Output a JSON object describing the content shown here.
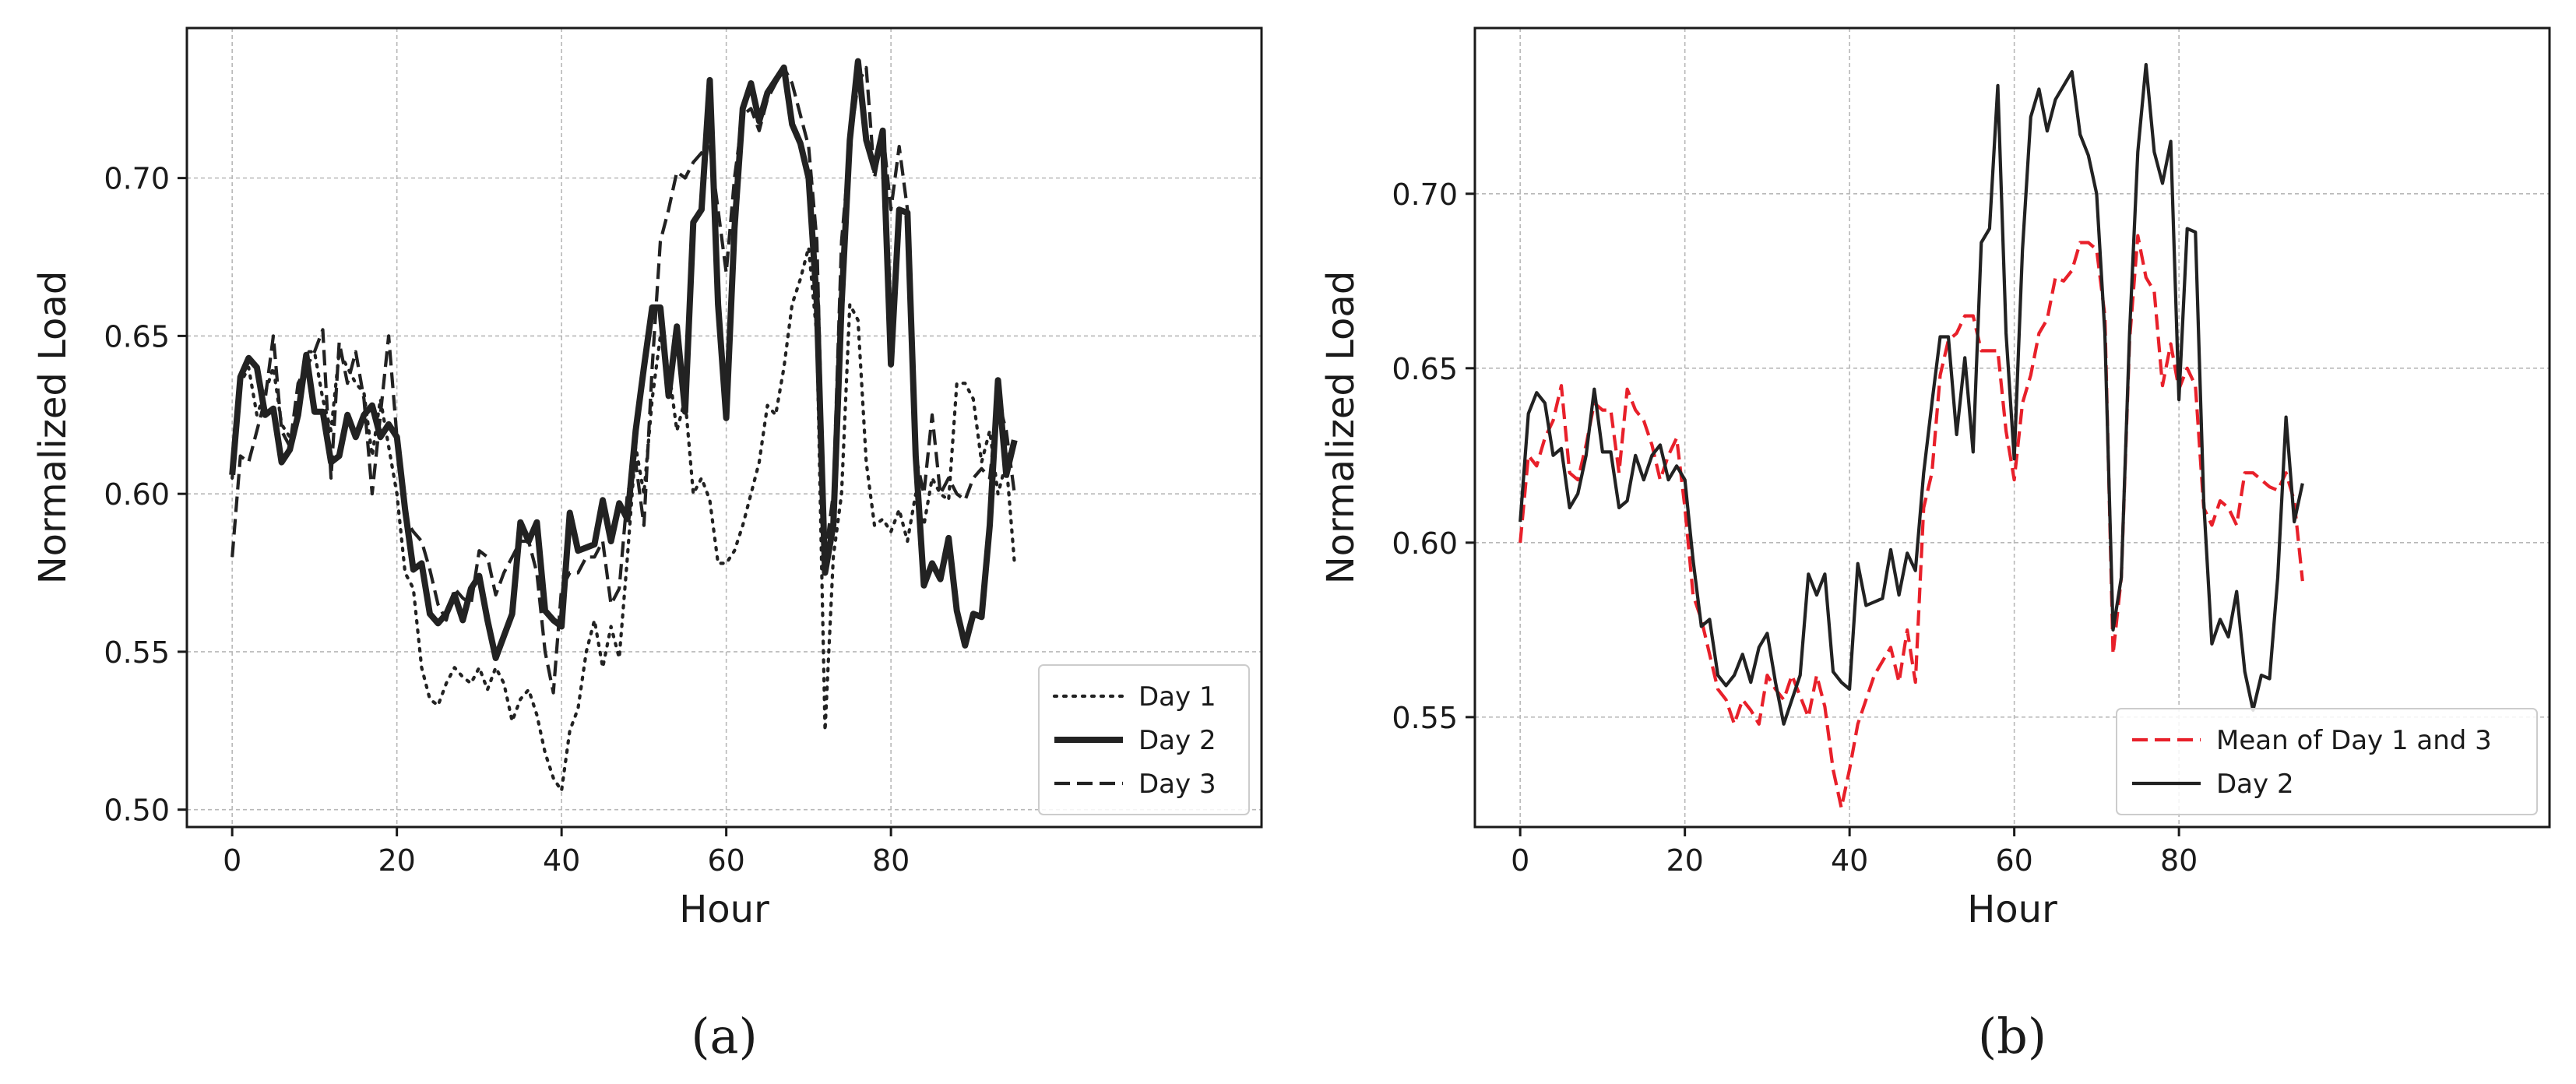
{
  "chart_data": [
    {
      "type": "line",
      "caption": "(a)",
      "xlabel": "Hour",
      "ylabel": "Normalized Load",
      "xlim": [
        -5.5,
        125
      ],
      "ylim": [
        0.4945,
        0.7475
      ],
      "xticks": [
        0,
        20,
        40,
        60,
        80
      ],
      "xtick_labels": [
        "0",
        "20",
        "40",
        "60",
        "80"
      ],
      "yticks": [
        0.5,
        0.55,
        0.6,
        0.65,
        0.7
      ],
      "ytick_labels": [
        "0.50",
        "0.55",
        "0.60",
        "0.65",
        "0.70"
      ],
      "grid": true,
      "legend_position": "lower right",
      "series": [
        {
          "name": "Day 1",
          "color": "#222222",
          "style": "dotted",
          "weight": "normal",
          "x": [
            0,
            1,
            2,
            3,
            4,
            5,
            6,
            7,
            8,
            9,
            10,
            11,
            12,
            13,
            14,
            15,
            16,
            17,
            18,
            19,
            20,
            21,
            22,
            23,
            24,
            25,
            26,
            27,
            28,
            29,
            30,
            31,
            32,
            33,
            34,
            35,
            36,
            37,
            38,
            39,
            40,
            41,
            42,
            43,
            44,
            45,
            46,
            47,
            48,
            49,
            50,
            51,
            52,
            53,
            54,
            55,
            56,
            57,
            58,
            59,
            60,
            61,
            62,
            63,
            64,
            65,
            66,
            67,
            68,
            69,
            70,
            71,
            72,
            73,
            74,
            75,
            76,
            77,
            78,
            79,
            80,
            81,
            82,
            83,
            84,
            85,
            86,
            87,
            88,
            89,
            90,
            91,
            92,
            93,
            94,
            95
          ],
          "y": [
            0.605,
            0.635,
            0.64,
            0.625,
            0.632,
            0.64,
            0.622,
            0.618,
            0.625,
            0.645,
            0.645,
            0.63,
            0.62,
            0.645,
            0.64,
            0.635,
            0.632,
            0.612,
            0.63,
            0.615,
            0.6,
            0.575,
            0.57,
            0.545,
            0.535,
            0.533,
            0.54,
            0.545,
            0.542,
            0.54,
            0.545,
            0.538,
            0.545,
            0.54,
            0.528,
            0.535,
            0.538,
            0.53,
            0.518,
            0.51,
            0.506,
            0.525,
            0.532,
            0.55,
            0.56,
            0.545,
            0.558,
            0.548,
            0.58,
            0.615,
            0.6,
            0.63,
            0.65,
            0.64,
            0.62,
            0.63,
            0.6,
            0.605,
            0.598,
            0.578,
            0.578,
            0.582,
            0.59,
            0.6,
            0.61,
            0.628,
            0.625,
            0.64,
            0.66,
            0.668,
            0.678,
            0.65,
            0.525,
            0.58,
            0.6,
            0.66,
            0.655,
            0.61,
            0.59,
            0.592,
            0.588,
            0.595,
            0.585,
            0.6,
            0.59,
            0.605,
            0.6,
            0.598,
            0.635,
            0.635,
            0.63,
            0.61,
            0.62,
            0.6,
            0.61,
            0.578
          ]
        },
        {
          "name": "Day 2",
          "color": "#222222",
          "style": "solid",
          "weight": "bold",
          "x": [
            0,
            1,
            2,
            3,
            4,
            5,
            6,
            7,
            8,
            9,
            10,
            11,
            12,
            13,
            14,
            15,
            16,
            17,
            18,
            19,
            20,
            21,
            22,
            23,
            24,
            25,
            26,
            27,
            28,
            29,
            30,
            31,
            32,
            33,
            34,
            35,
            36,
            37,
            38,
            39,
            40,
            41,
            42,
            43,
            44,
            45,
            46,
            47,
            48,
            49,
            50,
            51,
            52,
            53,
            54,
            55,
            56,
            57,
            58,
            59,
            60,
            61,
            62,
            63,
            64,
            65,
            66,
            67,
            68,
            69,
            70,
            71,
            72,
            73,
            74,
            75,
            76,
            77,
            78,
            79,
            80,
            81,
            82,
            83,
            84,
            85,
            86,
            87,
            88,
            89,
            90,
            91,
            92,
            93,
            94,
            95
          ],
          "y": [
            0.606,
            0.637,
            0.643,
            0.64,
            0.625,
            0.627,
            0.61,
            0.614,
            0.625,
            0.644,
            0.626,
            0.626,
            0.61,
            0.612,
            0.625,
            0.618,
            0.625,
            0.628,
            0.618,
            0.622,
            0.618,
            0.595,
            0.576,
            0.578,
            0.562,
            0.559,
            0.562,
            0.568,
            0.56,
            0.57,
            0.574,
            0.56,
            0.548,
            0.555,
            0.562,
            0.591,
            0.585,
            0.591,
            0.563,
            0.56,
            0.558,
            0.594,
            0.582,
            0.583,
            0.584,
            0.598,
            0.585,
            0.597,
            0.592,
            0.62,
            0.64,
            0.659,
            0.659,
            0.631,
            0.653,
            0.626,
            0.686,
            0.69,
            0.731,
            0.66,
            0.624,
            0.684,
            0.722,
            0.73,
            0.718,
            0.727,
            0.731,
            0.735,
            0.717,
            0.711,
            0.7,
            0.66,
            0.575,
            0.59,
            0.66,
            0.712,
            0.737,
            0.712,
            0.703,
            0.715,
            0.641,
            0.69,
            0.689,
            0.612,
            0.571,
            0.578,
            0.573,
            0.586,
            0.563,
            0.552,
            0.562,
            0.561,
            0.59,
            0.636,
            0.606,
            0.617
          ]
        },
        {
          "name": "Day 3",
          "color": "#222222",
          "style": "dashed",
          "weight": "normal",
          "x": [
            0,
            1,
            2,
            3,
            4,
            5,
            6,
            7,
            8,
            9,
            10,
            11,
            12,
            13,
            14,
            15,
            16,
            17,
            18,
            19,
            20,
            21,
            22,
            23,
            24,
            25,
            26,
            27,
            28,
            29,
            30,
            31,
            32,
            33,
            34,
            35,
            36,
            37,
            38,
            39,
            40,
            41,
            42,
            43,
            44,
            45,
            46,
            47,
            48,
            49,
            50,
            51,
            52,
            53,
            54,
            55,
            56,
            57,
            58,
            59,
            60,
            61,
            62,
            63,
            64,
            65,
            66,
            67,
            68,
            69,
            70,
            71,
            72,
            73,
            74,
            75,
            76,
            77,
            78,
            79,
            80,
            81,
            82,
            83,
            84,
            85,
            86,
            87,
            88,
            89,
            90,
            91,
            92,
            93,
            94,
            95
          ],
          "y": [
            0.58,
            0.612,
            0.61,
            0.62,
            0.63,
            0.65,
            0.62,
            0.615,
            0.635,
            0.64,
            0.645,
            0.652,
            0.605,
            0.648,
            0.635,
            0.645,
            0.63,
            0.6,
            0.625,
            0.65,
            0.618,
            0.592,
            0.588,
            0.585,
            0.576,
            0.565,
            0.56,
            0.57,
            0.567,
            0.565,
            0.582,
            0.58,
            0.568,
            0.575,
            0.58,
            0.585,
            0.585,
            0.575,
            0.55,
            0.537,
            0.57,
            0.575,
            0.575,
            0.58,
            0.58,
            0.585,
            0.565,
            0.57,
            0.6,
            0.61,
            0.59,
            0.64,
            0.68,
            0.69,
            0.702,
            0.7,
            0.705,
            0.708,
            0.71,
            0.69,
            0.67,
            0.7,
            0.72,
            0.722,
            0.715,
            0.725,
            0.73,
            0.735,
            0.73,
            0.72,
            0.71,
            0.68,
            0.58,
            0.6,
            0.68,
            0.71,
            0.73,
            0.735,
            0.7,
            0.715,
            0.69,
            0.71,
            0.69,
            0.612,
            0.6,
            0.625,
            0.6,
            0.605,
            0.6,
            0.598,
            0.605,
            0.608,
            0.605,
            0.63,
            0.62,
            0.6
          ]
        }
      ]
    },
    {
      "type": "line",
      "caption": "(b)",
      "xlabel": "Hour",
      "ylabel": "Normalized Load",
      "xlim": [
        -5.5,
        125
      ],
      "ylim": [
        0.5185,
        0.7475
      ],
      "xticks": [
        0,
        20,
        40,
        60,
        80
      ],
      "xtick_labels": [
        "0",
        "20",
        "40",
        "60",
        "80"
      ],
      "yticks": [
        0.55,
        0.6,
        0.65,
        0.7
      ],
      "ytick_labels": [
        "0.55",
        "0.60",
        "0.65",
        "0.70"
      ],
      "grid": true,
      "legend_position": "lower right",
      "series": [
        {
          "name": "Mean of Day 1 and 3",
          "color": "#e8202a",
          "style": "dashed",
          "weight": "normal",
          "x": [
            0,
            1,
            2,
            3,
            4,
            5,
            6,
            7,
            8,
            9,
            10,
            11,
            12,
            13,
            14,
            15,
            16,
            17,
            18,
            19,
            20,
            21,
            22,
            23,
            24,
            25,
            26,
            27,
            28,
            29,
            30,
            31,
            32,
            33,
            34,
            35,
            36,
            37,
            38,
            39,
            40,
            41,
            42,
            43,
            44,
            45,
            46,
            47,
            48,
            49,
            50,
            51,
            52,
            53,
            54,
            55,
            56,
            57,
            58,
            59,
            60,
            61,
            62,
            63,
            64,
            65,
            66,
            67,
            68,
            69,
            70,
            71,
            72,
            73,
            74,
            75,
            76,
            77,
            78,
            79,
            80,
            81,
            82,
            83,
            84,
            85,
            86,
            87,
            88,
            89,
            90,
            91,
            92,
            93,
            94,
            95
          ],
          "y": [
            0.6,
            0.625,
            0.622,
            0.63,
            0.635,
            0.645,
            0.62,
            0.618,
            0.628,
            0.64,
            0.638,
            0.638,
            0.62,
            0.644,
            0.638,
            0.635,
            0.628,
            0.618,
            0.625,
            0.63,
            0.61,
            0.585,
            0.578,
            0.568,
            0.558,
            0.555,
            0.548,
            0.555,
            0.552,
            0.548,
            0.562,
            0.558,
            0.555,
            0.562,
            0.556,
            0.55,
            0.562,
            0.553,
            0.535,
            0.524,
            0.535,
            0.548,
            0.555,
            0.562,
            0.566,
            0.57,
            0.56,
            0.575,
            0.56,
            0.61,
            0.62,
            0.648,
            0.658,
            0.66,
            0.665,
            0.665,
            0.655,
            0.655,
            0.655,
            0.632,
            0.618,
            0.64,
            0.648,
            0.66,
            0.664,
            0.676,
            0.675,
            0.678,
            0.686,
            0.686,
            0.684,
            0.665,
            0.568,
            0.59,
            0.658,
            0.688,
            0.676,
            0.672,
            0.645,
            0.657,
            0.644,
            0.65,
            0.645,
            0.61,
            0.605,
            0.612,
            0.61,
            0.605,
            0.62,
            0.62,
            0.618,
            0.616,
            0.615,
            0.62,
            0.612,
            0.589
          ]
        },
        {
          "name": "Day 2",
          "color": "#222222",
          "style": "solid",
          "weight": "normal",
          "x": [
            0,
            1,
            2,
            3,
            4,
            5,
            6,
            7,
            8,
            9,
            10,
            11,
            12,
            13,
            14,
            15,
            16,
            17,
            18,
            19,
            20,
            21,
            22,
            23,
            24,
            25,
            26,
            27,
            28,
            29,
            30,
            31,
            32,
            33,
            34,
            35,
            36,
            37,
            38,
            39,
            40,
            41,
            42,
            43,
            44,
            45,
            46,
            47,
            48,
            49,
            50,
            51,
            52,
            53,
            54,
            55,
            56,
            57,
            58,
            59,
            60,
            61,
            62,
            63,
            64,
            65,
            66,
            67,
            68,
            69,
            70,
            71,
            72,
            73,
            74,
            75,
            76,
            77,
            78,
            79,
            80,
            81,
            82,
            83,
            84,
            85,
            86,
            87,
            88,
            89,
            90,
            91,
            92,
            93,
            94,
            95
          ],
          "y": [
            0.606,
            0.637,
            0.643,
            0.64,
            0.625,
            0.627,
            0.61,
            0.614,
            0.625,
            0.644,
            0.626,
            0.626,
            0.61,
            0.612,
            0.625,
            0.618,
            0.625,
            0.628,
            0.618,
            0.622,
            0.618,
            0.595,
            0.576,
            0.578,
            0.562,
            0.559,
            0.562,
            0.568,
            0.56,
            0.57,
            0.574,
            0.56,
            0.548,
            0.555,
            0.562,
            0.591,
            0.585,
            0.591,
            0.563,
            0.56,
            0.558,
            0.594,
            0.582,
            0.583,
            0.584,
            0.598,
            0.585,
            0.597,
            0.592,
            0.62,
            0.64,
            0.659,
            0.659,
            0.631,
            0.653,
            0.626,
            0.686,
            0.69,
            0.731,
            0.66,
            0.624,
            0.684,
            0.722,
            0.73,
            0.718,
            0.727,
            0.731,
            0.735,
            0.717,
            0.711,
            0.7,
            0.66,
            0.575,
            0.59,
            0.66,
            0.712,
            0.737,
            0.712,
            0.703,
            0.715,
            0.641,
            0.69,
            0.689,
            0.612,
            0.571,
            0.578,
            0.573,
            0.586,
            0.563,
            0.552,
            0.562,
            0.561,
            0.59,
            0.636,
            0.606,
            0.617
          ]
        }
      ]
    }
  ]
}
